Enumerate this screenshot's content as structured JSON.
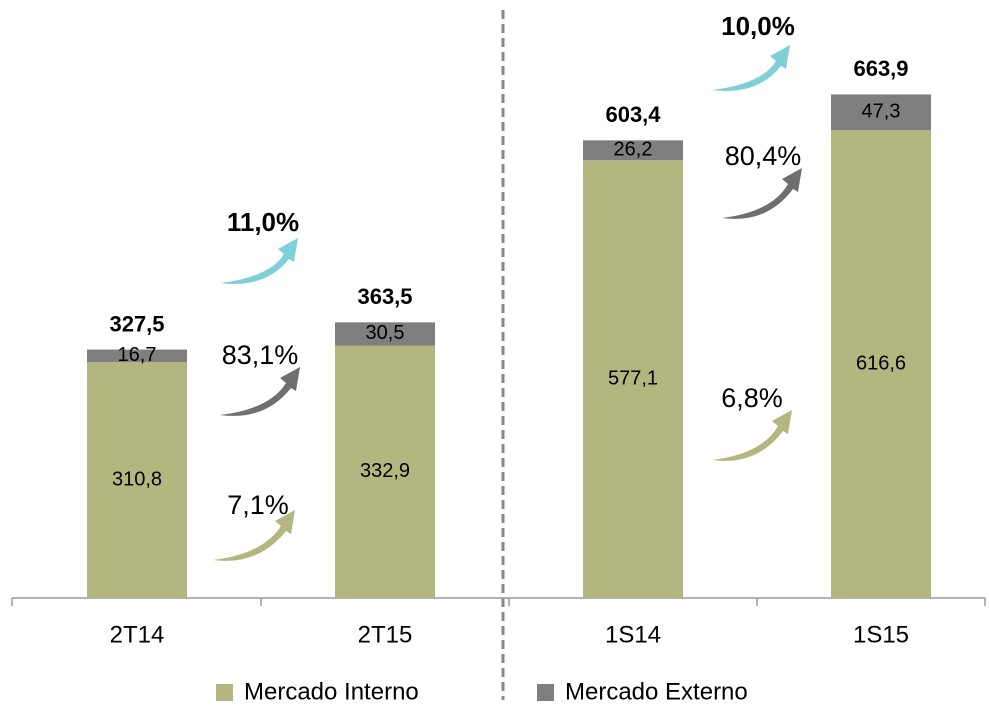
{
  "chart_data": {
    "type": "stacked_bar",
    "categories": [
      "2T14",
      "2T15",
      "1S14",
      "1S15"
    ],
    "series": [
      {
        "name": "Mercado Interno",
        "color": "#b3b67e",
        "values": [
          310.8,
          332.9,
          577.1,
          616.6
        ],
        "value_labels": [
          "310,8",
          "332,9",
          "577,1",
          "616,6"
        ]
      },
      {
        "name": "Mercado Externo",
        "color": "#7f7f7f",
        "values": [
          16.7,
          30.5,
          26.2,
          47.3
        ],
        "value_labels": [
          "16,7",
          "30,5",
          "26,2",
          "47,3"
        ]
      }
    ],
    "totals": [
      327.5,
      363.5,
      603.4,
      663.9
    ],
    "total_labels": [
      "327,5",
      "363,5",
      "603,4",
      "663,9"
    ],
    "annotations": [
      {
        "text": "11,0%",
        "color": "#7fcfd8"
      },
      {
        "text": "83,1%",
        "color": "#6f6f6f"
      },
      {
        "text": "7,1%",
        "color": "#b3b67e"
      },
      {
        "text": "10,0%",
        "color": "#7fcfd8"
      },
      {
        "text": "80,4%",
        "color": "#6f6f6f"
      },
      {
        "text": "6,8%",
        "color": "#b3b67e"
      }
    ],
    "ylim": [
      0,
      700
    ],
    "legend": "bottom"
  }
}
